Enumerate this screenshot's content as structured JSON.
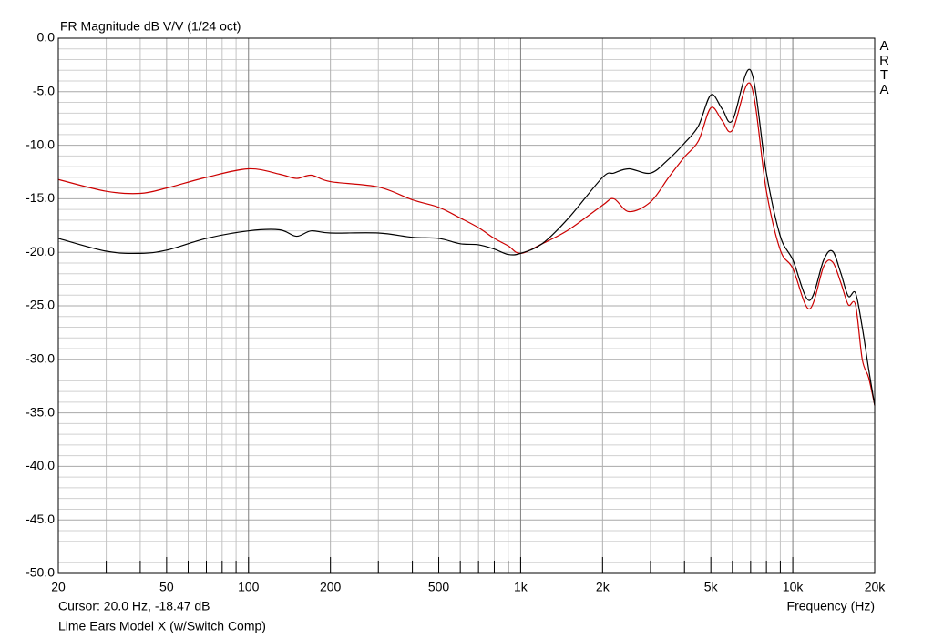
{
  "chart_data": {
    "type": "line",
    "title": "FR Magnitude dB V/V (1/24 oct)",
    "watermark": "ARTA",
    "cursor_text": "Cursor: 20.0 Hz, -18.47 dB",
    "xlabel": "Frequency (Hz)",
    "caption": "Lime Ears Model X (w/Switch Comp)",
    "log_x": true,
    "grid": true,
    "xlim": [
      20,
      20000
    ],
    "ylim": [
      -50,
      0
    ],
    "xticks": [
      20,
      50,
      100,
      200,
      500,
      {
        "value": 1000,
        "label": "1k"
      },
      {
        "value": 2000,
        "label": "2k"
      },
      {
        "value": 5000,
        "label": "5k"
      },
      {
        "value": 10000,
        "label": "10k"
      },
      {
        "value": 20000,
        "label": "20k"
      }
    ],
    "xminor": [
      30,
      40,
      60,
      70,
      80,
      90,
      300,
      400,
      600,
      700,
      800,
      900,
      3000,
      4000,
      6000,
      7000,
      8000,
      9000
    ],
    "yticks": [
      {
        "value": 0,
        "label": "0.0"
      },
      {
        "value": -5,
        "label": "-5.0"
      },
      {
        "value": -10,
        "label": "-10.0"
      },
      {
        "value": -15,
        "label": "-15.0"
      },
      {
        "value": -20,
        "label": "-20.0"
      },
      {
        "value": -25,
        "label": "-25.0"
      },
      {
        "value": -30,
        "label": "-30.0"
      },
      {
        "value": -35,
        "label": "-35.0"
      },
      {
        "value": -40,
        "label": "-40.0"
      },
      {
        "value": -45,
        "label": "-45.0"
      },
      {
        "value": -50,
        "label": "-50.0"
      }
    ],
    "yminor": [
      -1,
      -2,
      -3,
      -4,
      -6,
      -7,
      -8,
      -9,
      -11,
      -12,
      -13,
      -14,
      -16,
      -17,
      -18,
      -19,
      -21,
      -22,
      -23,
      -24,
      -26,
      -27,
      -28,
      -29,
      -31,
      -32,
      -33,
      -34,
      -36,
      -37,
      -38,
      -39,
      -41,
      -42,
      -43,
      -44,
      -46,
      -47,
      -48,
      -49
    ],
    "x": [
      20,
      30,
      40,
      50,
      70,
      100,
      130,
      150,
      170,
      200,
      300,
      400,
      500,
      600,
      700,
      800,
      900,
      1000,
      1200,
      1500,
      2000,
      2200,
      2500,
      3000,
      3500,
      4000,
      4500,
      5000,
      5500,
      6000,
      7000,
      8000,
      9000,
      10000,
      11500,
      13000,
      14000,
      15000,
      16000,
      17000,
      18000,
      19000,
      20000
    ],
    "series": [
      {
        "color": "#000000",
        "values": [
          -18.7,
          -19.9,
          -20.1,
          -19.8,
          -18.7,
          -18.0,
          -17.9,
          -18.5,
          -18.0,
          -18.2,
          -18.2,
          -18.6,
          -18.7,
          -19.2,
          -19.3,
          -19.7,
          -20.2,
          -20.1,
          -19.2,
          -16.8,
          -13.0,
          -12.6,
          -12.2,
          -12.6,
          -11.3,
          -9.8,
          -8.2,
          -5.3,
          -6.6,
          -7.7,
          -3.0,
          -12.6,
          -18.5,
          -20.7,
          -24.5,
          -20.7,
          -19.9,
          -21.9,
          -24.1,
          -23.8,
          -27.0,
          -30.9,
          -34.3
        ]
      },
      {
        "color": "#cc0000",
        "values": [
          -13.2,
          -14.3,
          -14.5,
          -14.0,
          -13.0,
          -12.2,
          -12.7,
          -13.1,
          -12.8,
          -13.4,
          -13.9,
          -15.1,
          -15.8,
          -16.8,
          -17.7,
          -18.7,
          -19.4,
          -20.1,
          -19.2,
          -17.9,
          -15.6,
          -15.0,
          -16.2,
          -15.3,
          -13.0,
          -11.1,
          -9.6,
          -6.5,
          -7.7,
          -8.6,
          -4.3,
          -14.3,
          -19.8,
          -21.5,
          -25.3,
          -21.3,
          -20.9,
          -22.8,
          -24.9,
          -24.9,
          -30.0,
          -31.7,
          -34.3
        ]
      }
    ]
  }
}
